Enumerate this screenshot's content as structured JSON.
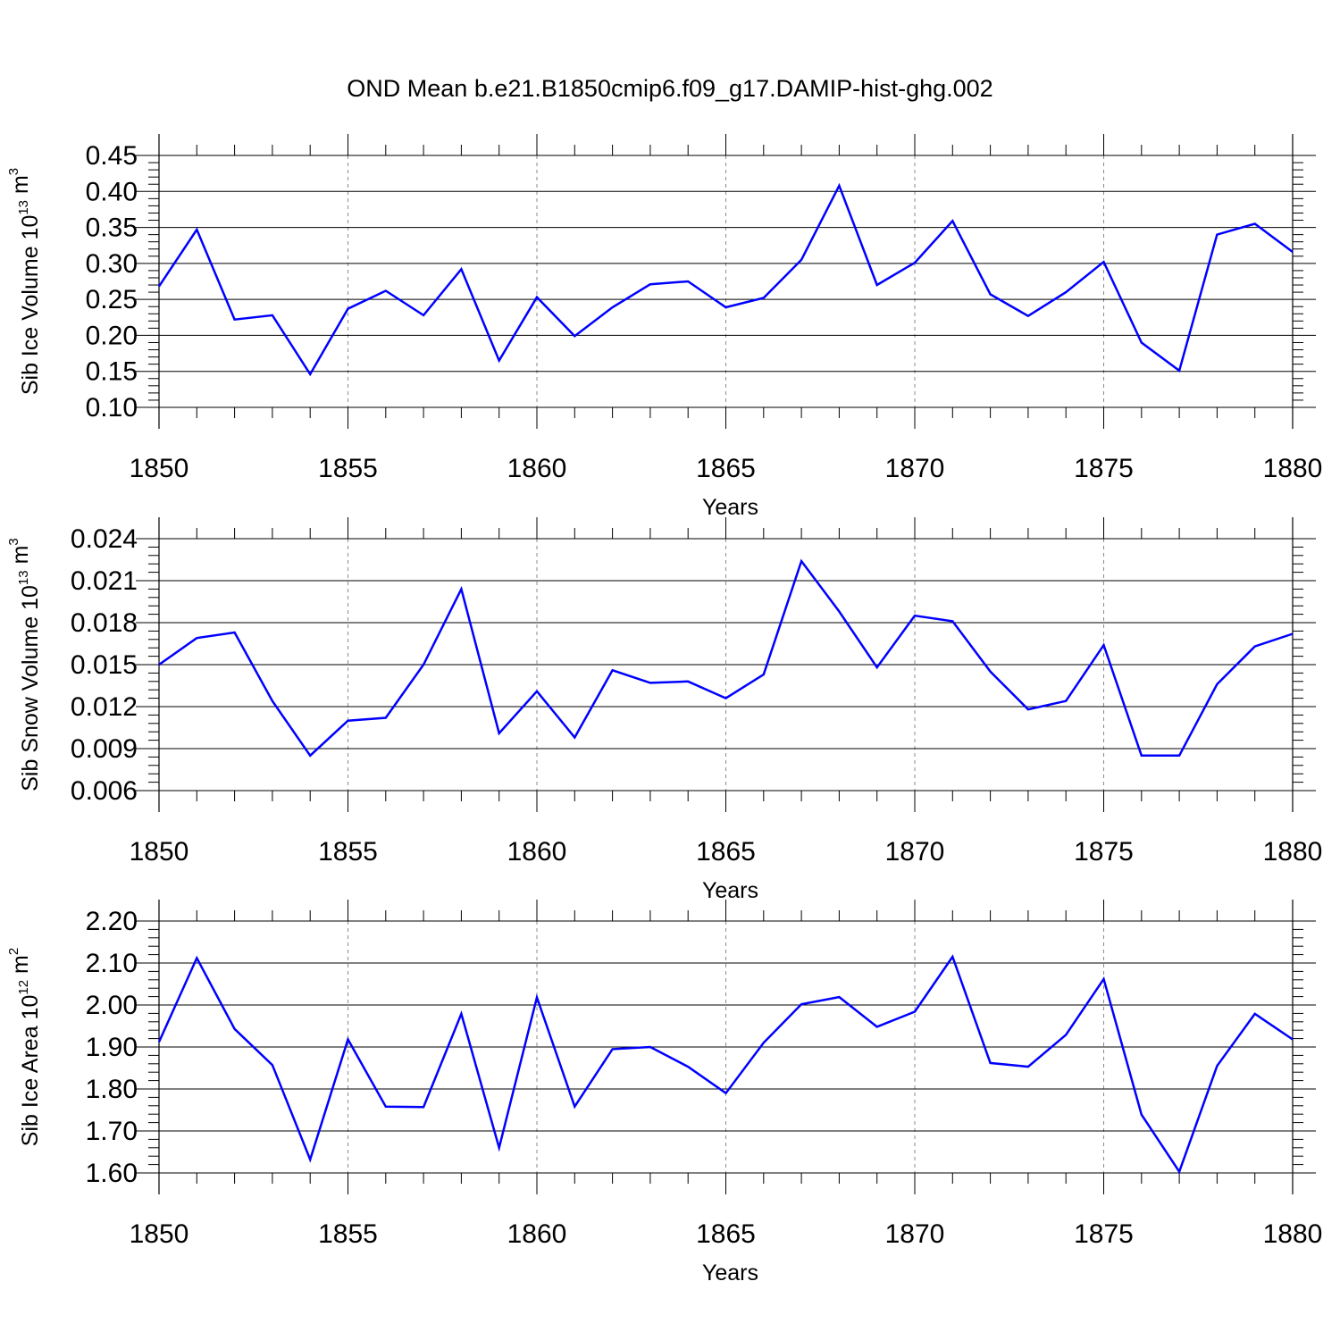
{
  "title": "OND Mean b.e21.B1850cmip6.f09_g17.DAMIP-hist-ghg.002",
  "chart_data": [
    {
      "type": "line",
      "xlabel": "Years",
      "ylabel": "Sib Ice Volume 10",
      "ylabel_exp": "13",
      "ylabel_unit": " m",
      "ylabel_unit_exp": "3",
      "xlim": [
        1850,
        1880
      ],
      "ylim": [
        0.1,
        0.45
      ],
      "xticks": [
        "1850",
        "1855",
        "1860",
        "1865",
        "1870",
        "1875",
        "1880"
      ],
      "xtick_values": [
        1850,
        1855,
        1860,
        1865,
        1870,
        1875,
        1880
      ],
      "yticks": [
        "0.10",
        "0.15",
        "0.20",
        "0.25",
        "0.30",
        "0.35",
        "0.40",
        "0.45"
      ],
      "ytick_values": [
        0.1,
        0.15,
        0.2,
        0.25,
        0.3,
        0.35,
        0.4,
        0.45
      ],
      "color": "#0000ff",
      "x": [
        1850,
        1851,
        1852,
        1853,
        1854,
        1855,
        1856,
        1857,
        1858,
        1859,
        1860,
        1861,
        1862,
        1863,
        1864,
        1865,
        1866,
        1867,
        1868,
        1869,
        1870,
        1871,
        1872,
        1873,
        1874,
        1875,
        1876,
        1877,
        1878,
        1879,
        1880
      ],
      "y": [
        0.268,
        0.347,
        0.222,
        0.228,
        0.146,
        0.237,
        0.262,
        0.228,
        0.292,
        0.165,
        0.253,
        0.199,
        0.239,
        0.271,
        0.275,
        0.239,
        0.252,
        0.305,
        0.408,
        0.27,
        0.301,
        0.359,
        0.257,
        0.227,
        0.26,
        0.302,
        0.19,
        0.151,
        0.34,
        0.355,
        0.316
      ]
    },
    {
      "type": "line",
      "xlabel": "Years",
      "ylabel": "Sib Snow Volume 10",
      "ylabel_exp": "13",
      "ylabel_unit": " m",
      "ylabel_unit_exp": "3",
      "xlim": [
        1850,
        1880
      ],
      "ylim": [
        0.006,
        0.024
      ],
      "xticks": [
        "1850",
        "1855",
        "1860",
        "1865",
        "1870",
        "1875",
        "1880"
      ],
      "xtick_values": [
        1850,
        1855,
        1860,
        1865,
        1870,
        1875,
        1880
      ],
      "yticks": [
        "0.006",
        "0.009",
        "0.012",
        "0.015",
        "0.018",
        "0.021",
        "0.024"
      ],
      "ytick_values": [
        0.006,
        0.009,
        0.012,
        0.015,
        0.018,
        0.021,
        0.024
      ],
      "color": "#0000ff",
      "x": [
        1850,
        1851,
        1852,
        1853,
        1854,
        1855,
        1856,
        1857,
        1858,
        1859,
        1860,
        1861,
        1862,
        1863,
        1864,
        1865,
        1866,
        1867,
        1868,
        1869,
        1870,
        1871,
        1872,
        1873,
        1874,
        1875,
        1876,
        1877,
        1878,
        1879,
        1880
      ],
      "y": [
        0.015,
        0.0169,
        0.0173,
        0.0124,
        0.0085,
        0.011,
        0.0112,
        0.015,
        0.0204,
        0.0101,
        0.0131,
        0.0098,
        0.0146,
        0.0137,
        0.0138,
        0.0126,
        0.0143,
        0.0224,
        0.0188,
        0.0148,
        0.0185,
        0.0181,
        0.0145,
        0.0118,
        0.0124,
        0.0164,
        0.0085,
        0.0085,
        0.0136,
        0.0163,
        0.0172
      ]
    },
    {
      "type": "line",
      "xlabel": "Years",
      "ylabel": "Sib Ice Area 10",
      "ylabel_exp": "12",
      "ylabel_unit": " m",
      "ylabel_unit_exp": "2",
      "xlim": [
        1850,
        1880
      ],
      "ylim": [
        1.6,
        2.2
      ],
      "xticks": [
        "1850",
        "1855",
        "1860",
        "1865",
        "1870",
        "1875",
        "1880"
      ],
      "xtick_values": [
        1850,
        1855,
        1860,
        1865,
        1870,
        1875,
        1880
      ],
      "yticks": [
        "1.60",
        "1.70",
        "1.80",
        "1.90",
        "2.00",
        "2.10",
        "2.20"
      ],
      "ytick_values": [
        1.6,
        1.7,
        1.8,
        1.9,
        2.0,
        2.1,
        2.2
      ],
      "color": "#0000ff",
      "x": [
        1850,
        1851,
        1852,
        1853,
        1854,
        1855,
        1856,
        1857,
        1858,
        1859,
        1860,
        1861,
        1862,
        1863,
        1864,
        1865,
        1866,
        1867,
        1868,
        1869,
        1870,
        1871,
        1872,
        1873,
        1874,
        1875,
        1876,
        1877,
        1878,
        1879,
        1880
      ],
      "y": [
        1.912,
        2.112,
        1.943,
        1.857,
        1.632,
        1.918,
        1.758,
        1.757,
        1.979,
        1.66,
        2.018,
        1.758,
        1.895,
        1.9,
        1.853,
        1.79,
        1.91,
        2.002,
        2.019,
        1.948,
        1.984,
        2.115,
        1.862,
        1.853,
        1.929,
        2.062,
        1.739,
        1.603,
        1.855,
        1.979,
        1.918
      ]
    }
  ]
}
